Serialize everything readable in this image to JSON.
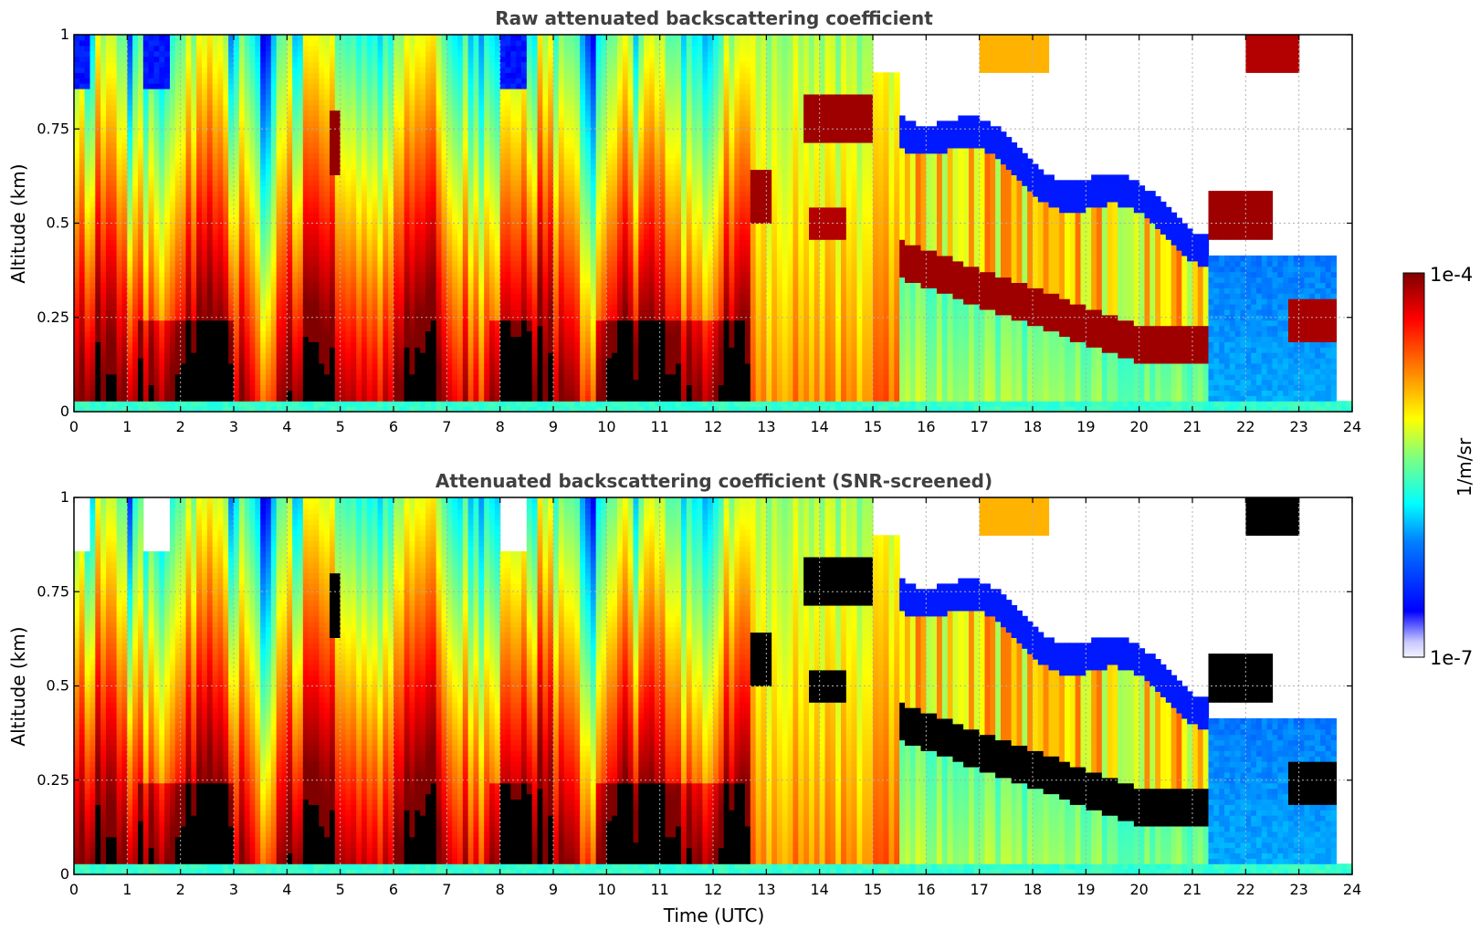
{
  "chart_data": [
    {
      "type": "heatmap",
      "title": "Raw attenuated backscattering coefficient",
      "xlabel": "",
      "ylabel": "Altitude (km)",
      "xlim": [
        0,
        24
      ],
      "ylim": [
        0,
        1
      ],
      "xticks": [
        "0",
        "1",
        "2",
        "3",
        "4",
        "5",
        "6",
        "7",
        "8",
        "9",
        "10",
        "11",
        "12",
        "13",
        "14",
        "15",
        "16",
        "17",
        "18",
        "19",
        "20",
        "21",
        "22",
        "23",
        "24"
      ],
      "yticks": [
        "0",
        "0.25",
        "0.5",
        "0.75",
        "1"
      ],
      "grid": true,
      "colormap": "jet",
      "screened": false
    },
    {
      "type": "heatmap",
      "title": "Attenuated backscattering coefficient (SNR-screened)",
      "xlabel": "Time (UTC)",
      "ylabel": "Altitude (km)",
      "xlim": [
        0,
        24
      ],
      "ylim": [
        0,
        1
      ],
      "xticks": [
        "0",
        "1",
        "2",
        "3",
        "4",
        "5",
        "6",
        "7",
        "8",
        "9",
        "10",
        "11",
        "12",
        "13",
        "14",
        "15",
        "16",
        "17",
        "18",
        "19",
        "20",
        "21",
        "22",
        "23",
        "24"
      ],
      "yticks": [
        "0",
        "0.25",
        "0.5",
        "0.75",
        "1"
      ],
      "grid": true,
      "colormap": "jet",
      "screened": true
    }
  ],
  "colorbar": {
    "label": "1/m/sr",
    "max_label": "1e-4",
    "min_label": "1e-7",
    "scale": "log"
  },
  "colors": {
    "title_text": "#404040",
    "axis": "#000000",
    "grid": "#b0b0b0",
    "jet": [
      "#00007f",
      "#0000ff",
      "#007fff",
      "#00ffff",
      "#7fff7f",
      "#ffff00",
      "#ff7f00",
      "#ff0000",
      "#7f0000"
    ],
    "screen_overflow": "#000000"
  }
}
